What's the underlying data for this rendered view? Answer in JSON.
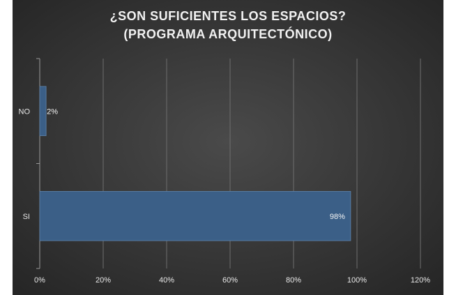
{
  "chart_data": {
    "type": "bar",
    "orientation": "horizontal",
    "title": "¿SON SUFICIENTES LOS ESPACIOS?",
    "subtitle": "(PROGRAMA ARQUITECTÓNICO)",
    "categories": [
      "NO",
      "SI"
    ],
    "values": [
      0.02,
      0.98
    ],
    "data_labels": [
      "2%",
      "98%"
    ],
    "xlim": [
      0,
      1.2
    ],
    "x_ticks": [
      0,
      0.2,
      0.4,
      0.6,
      0.8,
      1.0,
      1.2
    ],
    "x_tick_labels": [
      "0%",
      "20%",
      "40%",
      "60%",
      "80%",
      "100%",
      "120%"
    ],
    "grid": "vertical",
    "legend": "none",
    "colors": {
      "background_outer": "#262626",
      "background_inner": "#4a4a4a",
      "bar": "#3b5f87",
      "bar_edge": "#5f83ab",
      "grid": "#6e6e6e",
      "text": "#e8e8e8"
    }
  }
}
